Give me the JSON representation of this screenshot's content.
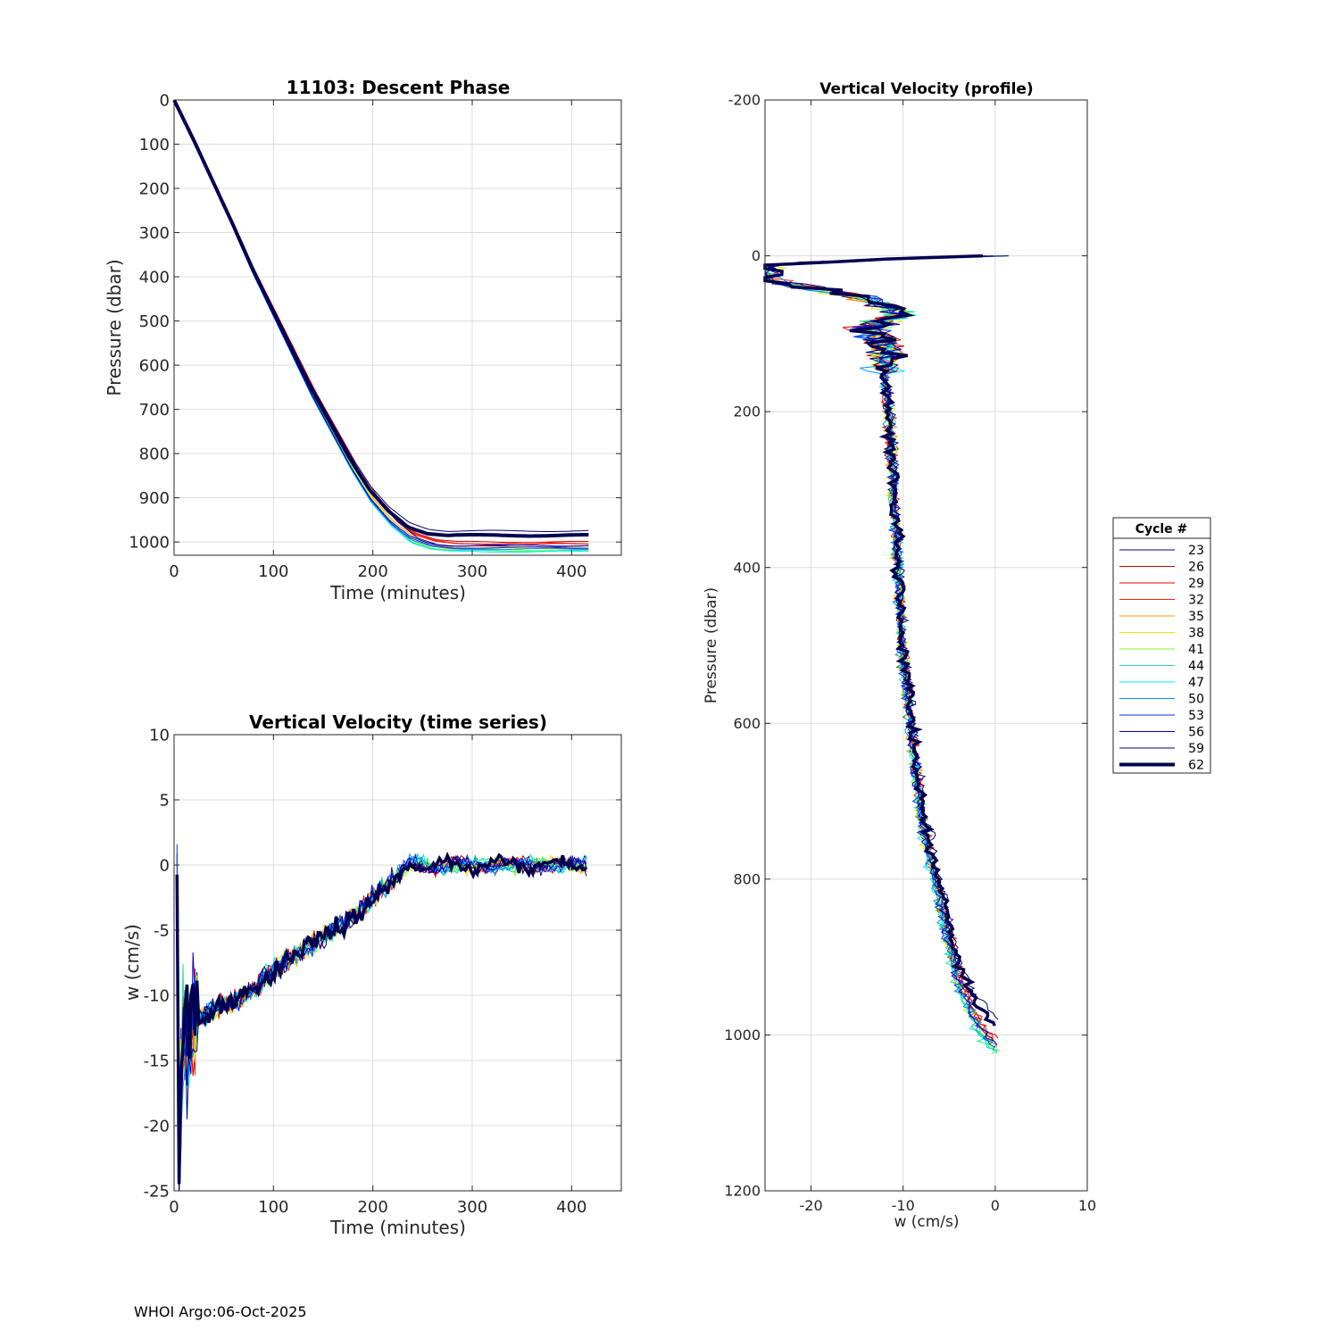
{
  "footer": "WHOI Argo:06-Oct-2025",
  "legend": {
    "title": "Cycle #",
    "entries": [
      {
        "label": "23",
        "color": "#00008f"
      },
      {
        "label": "26",
        "color": "#c80000"
      },
      {
        "label": "29",
        "color": "#e00000"
      },
      {
        "label": "32",
        "color": "#ff2000"
      },
      {
        "label": "35",
        "color": "#ff9a00"
      },
      {
        "label": "38",
        "color": "#e8e800"
      },
      {
        "label": "41",
        "color": "#7cff2a"
      },
      {
        "label": "44",
        "color": "#20e890"
      },
      {
        "label": "47",
        "color": "#00e8e8"
      },
      {
        "label": "50",
        "color": "#0090ff"
      },
      {
        "label": "53",
        "color": "#0030ff"
      },
      {
        "label": "56",
        "color": "#0000c0"
      },
      {
        "label": "59",
        "color": "#000070"
      },
      {
        "label": "62",
        "color": "#000050",
        "bold": true
      }
    ]
  },
  "chart_data": [
    {
      "id": "descent",
      "type": "line",
      "title": "11103: Descent Phase",
      "xlabel": "Time (minutes)",
      "ylabel": "Pressure (dbar)",
      "xlim": [
        0,
        450
      ],
      "ylim": [
        1030,
        0
      ],
      "y_reversed": true,
      "xticks": [
        "0",
        "100",
        "200",
        "300",
        "400"
      ],
      "yticks": [
        "0",
        "100",
        "200",
        "300",
        "400",
        "500",
        "600",
        "700",
        "800",
        "900",
        "1000"
      ],
      "grid": true,
      "series_shape": {
        "x": [
          0,
          20,
          40,
          60,
          80,
          100,
          120,
          140,
          160,
          180,
          200,
          220,
          240,
          260,
          280,
          300,
          340,
          380,
          420
        ],
        "y": [
          0,
          90,
          185,
          280,
          380,
          470,
          560,
          650,
          730,
          810,
          880,
          930,
          965,
          980,
          985,
          985,
          985,
          985,
          985
        ]
      },
      "final_pressures": [
        1010,
        1000,
        1005,
        1003,
        1012,
        1015,
        1018,
        1020,
        1022,
        1016,
        1013,
        1008,
        975,
        985
      ]
    },
    {
      "id": "timeseries",
      "type": "line",
      "title": "Vertical Velocity (time series)",
      "xlabel": "Time (minutes)",
      "ylabel": "w (cm/s)",
      "xlim": [
        0,
        450
      ],
      "ylim": [
        -25,
        10
      ],
      "xticks": [
        "0",
        "100",
        "200",
        "300",
        "400"
      ],
      "yticks": [
        "10",
        "5",
        "0",
        "-5",
        "-10",
        "-15",
        "-20",
        "-25"
      ],
      "grid": true,
      "series_shape": {
        "x": [
          3,
          5,
          8,
          12,
          20,
          40,
          60,
          80,
          100,
          120,
          140,
          160,
          180,
          200,
          220,
          240,
          260,
          280,
          300,
          340,
          380,
          415
        ],
        "w": [
          -1,
          -25,
          -12,
          -15,
          -12,
          -11,
          -10.5,
          -9.5,
          -8,
          -7,
          -6,
          -5,
          -4,
          -2.5,
          -1.2,
          0.3,
          -0.2,
          0,
          0,
          0,
          0,
          0
        ]
      }
    },
    {
      "id": "profile",
      "type": "line",
      "title": "Vertical Velocity (profile)",
      "xlabel": "w (cm/s)",
      "ylabel": "Pressure (dbar)",
      "xlim": [
        -25,
        10
      ],
      "ylim": [
        1200,
        -200
      ],
      "y_reversed": true,
      "xticks": [
        "-20",
        "-10",
        "0",
        "10"
      ],
      "yticks": [
        "-200",
        "0",
        "200",
        "400",
        "600",
        "800",
        "1000",
        "1200"
      ],
      "grid": true,
      "series_shape": {
        "p": [
          0,
          10,
          30,
          50,
          70,
          90,
          110,
          150,
          200,
          300,
          400,
          500,
          600,
          700,
          800,
          900,
          950,
          980
        ],
        "w": [
          0,
          -25,
          -25,
          -15,
          -10,
          -14,
          -12,
          -12,
          -11.5,
          -11,
          -10.5,
          -10,
          -9,
          -8,
          -6,
          -4,
          -2,
          0
        ]
      }
    }
  ]
}
